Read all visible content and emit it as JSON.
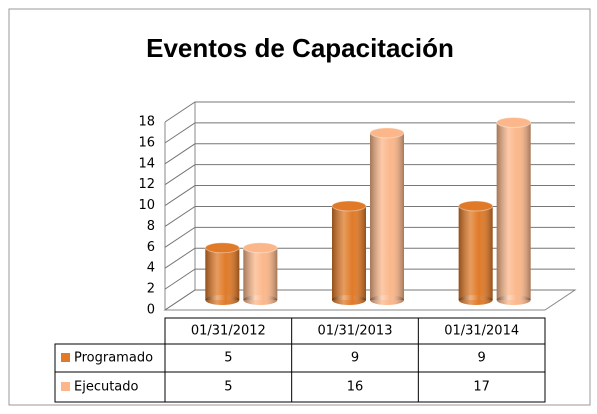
{
  "chart_data": {
    "type": "bar3d",
    "title": "Eventos de Capacitación",
    "categories": [
      "01/31/2012",
      "01/31/2013",
      "01/31/2014"
    ],
    "series": [
      {
        "name": "Programado",
        "color": "#e07a28",
        "values": [
          5,
          9,
          9
        ]
      },
      {
        "name": "Ejecutado",
        "color": "#fbb78a",
        "values": [
          5,
          16,
          17
        ]
      }
    ],
    "ylim": [
      0,
      18
    ],
    "yticks": [
      0,
      2,
      4,
      6,
      8,
      10,
      12,
      14,
      16,
      18
    ],
    "grid": true,
    "data_table": true
  }
}
